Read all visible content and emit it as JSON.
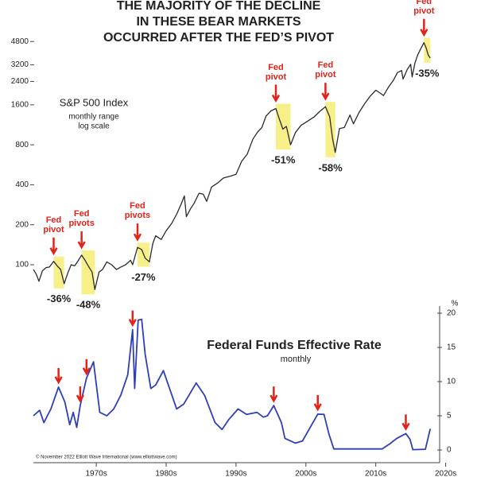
{
  "chart_data": [
    {
      "type": "line",
      "title": [
        "THE MAJORITY OF THE DECLINE",
        "IN THESE BEAR MARKETS",
        "OCCURRED AFTER THE FED’S PIVOT"
      ],
      "log_scale": true,
      "ylim": [
        60,
        6000
      ],
      "yticks": [
        100,
        200,
        400,
        800,
        1600,
        2400,
        3200,
        4800
      ],
      "xlim": [
        1966,
        2023
      ],
      "subtitle": [
        "monthly range",
        "log scale"
      ],
      "series": [
        {
          "name": "S&P 500 Index",
          "color": "#2b2b2b",
          "x": [
            1966,
            1966.4,
            1966.8,
            1967.3,
            1967.8,
            1968.3,
            1968.9,
            1969.4,
            1969.9,
            1970.4,
            1970.9,
            1971.4,
            1971.9,
            1972.4,
            1972.9,
            1973.4,
            1973.9,
            1974.4,
            1974.8,
            1975.4,
            1975.9,
            1976.5,
            1977.2,
            1977.9,
            1978.5,
            1979.2,
            1979.9,
            1980.2,
            1980.9,
            1981.5,
            1982.0,
            1982.6,
            1983.1,
            1983.5,
            1984.3,
            1985.0,
            1985.8,
            1986.5,
            1987.2,
            1987.6,
            1987.9,
            1988.5,
            1989.0,
            1989.7,
            1990.3,
            1990.8,
            1991.5,
            1992.3,
            1993.2,
            1994.2,
            1995.0,
            1995.8,
            1996.6,
            1997.4,
            1998.1,
            1998.7,
            1999.3,
            2000.0,
            2000.7,
            2001.2,
            2001.7,
            2002.2,
            2002.8,
            2003.5,
            2004.3,
            2005.2,
            2006.2,
            2007.0,
            2007.8,
            2008.4,
            2008.8,
            2009.2,
            2009.8,
            2010.5,
            2011.3,
            2011.8,
            2012.6,
            2013.4,
            2014.2,
            2015.0,
            2015.7,
            2016.1,
            2016.8,
            2017.5,
            2018.1,
            2018.7,
            2018.9,
            2019.5,
            2020.0,
            2020.2,
            2020.6,
            2021.0,
            2021.5,
            2021.9,
            2022.2,
            2022.5,
            2022.8
          ],
          "values": [
            92,
            85,
            75,
            90,
            95,
            96,
            106,
            98,
            92,
            72,
            86,
            100,
            98,
            107,
            118,
            108,
            97,
            88,
            65,
            88,
            92,
            105,
            100,
            92,
            96,
            100,
            108,
            100,
            135,
            130,
            112,
            105,
            145,
            165,
            155,
            180,
            205,
            240,
            290,
            330,
            230,
            265,
            290,
            345,
            340,
            300,
            385,
            410,
            450,
            465,
            480,
            600,
            680,
            880,
            1000,
            1080,
            1320,
            1440,
            1500,
            1250,
            1050,
            1100,
            800,
            990,
            1120,
            1200,
            1300,
            1430,
            1550,
            1300,
            900,
            700,
            1060,
            1080,
            1340,
            1150,
            1400,
            1630,
            1860,
            2060,
            1950,
            1880,
            2170,
            2440,
            2800,
            2900,
            2500,
            2950,
            3230,
            2600,
            3300,
            3800,
            4300,
            4700,
            4300,
            3800,
            3600
          ]
        }
      ],
      "bear_markets": [
        {
          "start": 1968.9,
          "end": 1970.4,
          "decline": -36,
          "label": "-36%",
          "note": "Fed pivot",
          "pivot_dates": [
            1969.6
          ]
        },
        {
          "start": 1972.9,
          "end": 1974.8,
          "decline": -48,
          "label": "-48%",
          "note": "Fed pivots",
          "pivot_dates": [
            1972.7,
            1973.6
          ]
        },
        {
          "start": 1980.9,
          "end": 1982.6,
          "decline": -27,
          "label": "-27%",
          "note": "Fed pivots",
          "pivot_dates": [
            1980.2
          ]
        },
        {
          "start": 2000.7,
          "end": 2002.8,
          "decline": -51,
          "label": "-51%",
          "note": "Fed pivot",
          "pivot_dates": [
            2000.4
          ]
        },
        {
          "start": 2007.8,
          "end": 2009.2,
          "decline": -58,
          "label": "-58%",
          "note": "Fed pivot",
          "pivot_dates": [
            2006.7
          ]
        },
        {
          "start": 2021.9,
          "end": 2022.8,
          "decline": -35,
          "label": "-35%",
          "note": "Fed pivot",
          "pivot_dates": [
            2019.3
          ]
        }
      ]
    },
    {
      "type": "line",
      "title": "Federal Funds Effective Rate",
      "subtitle": "monthly",
      "y_unit": "%",
      "ylim": [
        0,
        20
      ],
      "yticks": [
        0,
        5,
        10,
        15,
        20
      ],
      "xlim": [
        1966,
        2023
      ],
      "xticks": [
        {
          "value": 1975,
          "label": "1970s"
        },
        {
          "value": 1985,
          "label": "1980s"
        },
        {
          "value": 1995,
          "label": "1990s"
        },
        {
          "value": 2005,
          "label": "2000s"
        },
        {
          "value": 2015,
          "label": "2010s"
        },
        {
          "value": 2025,
          "label": "2020s"
        }
      ],
      "credit": "© November 2022 Elliott Wave International (www.elliottwave.com)",
      "series": [
        {
          "name": "Federal Funds Effective Rate",
          "color": "#2f3fb5",
          "x": [
            1966,
            1966.9,
            1967.5,
            1968.5,
            1969.6,
            1970.5,
            1971.2,
            1971.7,
            1972.2,
            1972.7,
            1973.6,
            1974.6,
            1975.5,
            1976.5,
            1977.5,
            1978.5,
            1979.5,
            1980.2,
            1980.5,
            1981.0,
            1981.5,
            1982.0,
            1982.8,
            1983.5,
            1984.6,
            1986.5,
            1987.5,
            1989.3,
            1990.5,
            1992.0,
            1993.0,
            1994.0,
            1995.3,
            1996.5,
            1998.0,
            1998.9,
            1999.5,
            2000.4,
            2001.5,
            2002.0,
            2003.5,
            2004.5,
            2006.7,
            2007.6,
            2008.3,
            2009.0,
            2015.9,
            2017.0,
            2018.0,
            2019.3,
            2019.9,
            2020.3,
            2022.1,
            2022.8
          ],
          "values": [
            5,
            5.8,
            4,
            6,
            9.2,
            7,
            3.7,
            5.5,
            3.3,
            6.5,
            10.5,
            12.9,
            5.5,
            5,
            6,
            8,
            11,
            17.6,
            9,
            19,
            19.1,
            14,
            9,
            9.5,
            11.6,
            6,
            6.7,
            9.8,
            8,
            4,
            3,
            4.5,
            6,
            5.2,
            5.5,
            4.8,
            5,
            6.5,
            4,
            1.7,
            1,
            1.3,
            5.25,
            5.2,
            2.3,
            0.15,
            0.15,
            0.9,
            1.7,
            2.4,
            1.55,
            0.05,
            0.1,
            3.1
          ]
        }
      ]
    }
  ]
}
